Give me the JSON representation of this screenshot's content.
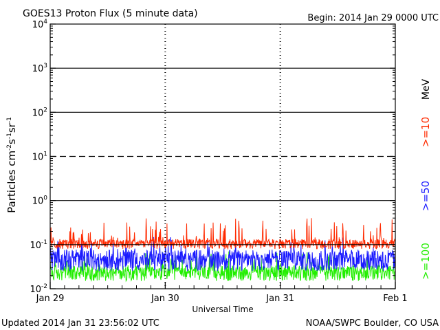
{
  "chart_data": {
    "type": "line",
    "title": "GOES13 Proton Flux (5 minute data)",
    "begin_label": "Begin: 2014 Jan 29 0000 UTC",
    "xlabel": "Universal Time",
    "ylabel_main": "Particles cm",
    "ylabel_exp1": "-2",
    "ylabel_s": "s",
    "ylabel_exp2": "-1",
    "ylabel_sr": "sr",
    "ylabel_exp3": "-1",
    "y_scale": "log",
    "ylim": [
      0.01,
      10000
    ],
    "y_ticks": [
      {
        "base": "10",
        "exp": "-2",
        "value": 0.01
      },
      {
        "base": "10",
        "exp": "-1",
        "value": 0.1
      },
      {
        "base": "10",
        "exp": "0",
        "value": 1
      },
      {
        "base": "10",
        "exp": "1",
        "value": 10
      },
      {
        "base": "10",
        "exp": "2",
        "value": 100
      },
      {
        "base": "10",
        "exp": "3",
        "value": 1000
      },
      {
        "base": "10",
        "exp": "4",
        "value": 10000
      }
    ],
    "threshold_lines": [
      {
        "value": 10,
        "style": "dashed"
      },
      {
        "value": 1,
        "style": "solid"
      },
      {
        "value": 100,
        "style": "solid"
      },
      {
        "value": 1000,
        "style": "solid"
      },
      {
        "value": 0.1,
        "style": "solid"
      }
    ],
    "xlim": [
      "2014-01-29",
      "2014-02-01"
    ],
    "x_ticks": [
      {
        "label": "Jan 29",
        "day": 0
      },
      {
        "label": "Jan 30",
        "day": 1
      },
      {
        "label": "Jan 31",
        "day": 2
      },
      {
        "label": "Feb 1",
        "day": 3
      }
    ],
    "unit_label": "MeV",
    "series": [
      {
        "name": ">=10",
        "color": "#ff2a00",
        "typical": 0.11,
        "range": [
          0.08,
          0.4
        ]
      },
      {
        "name": ">=50",
        "color": "#1a1aff",
        "typical": 0.05,
        "range": [
          0.025,
          0.15
        ]
      },
      {
        "name": ">=100",
        "color": "#22ee00",
        "typical": 0.025,
        "range": [
          0.015,
          0.07
        ]
      }
    ]
  },
  "footer": {
    "updated": "Updated 2014 Jan 31 23:56:02 UTC",
    "credit": "NOAA/SWPC Boulder, CO USA"
  }
}
